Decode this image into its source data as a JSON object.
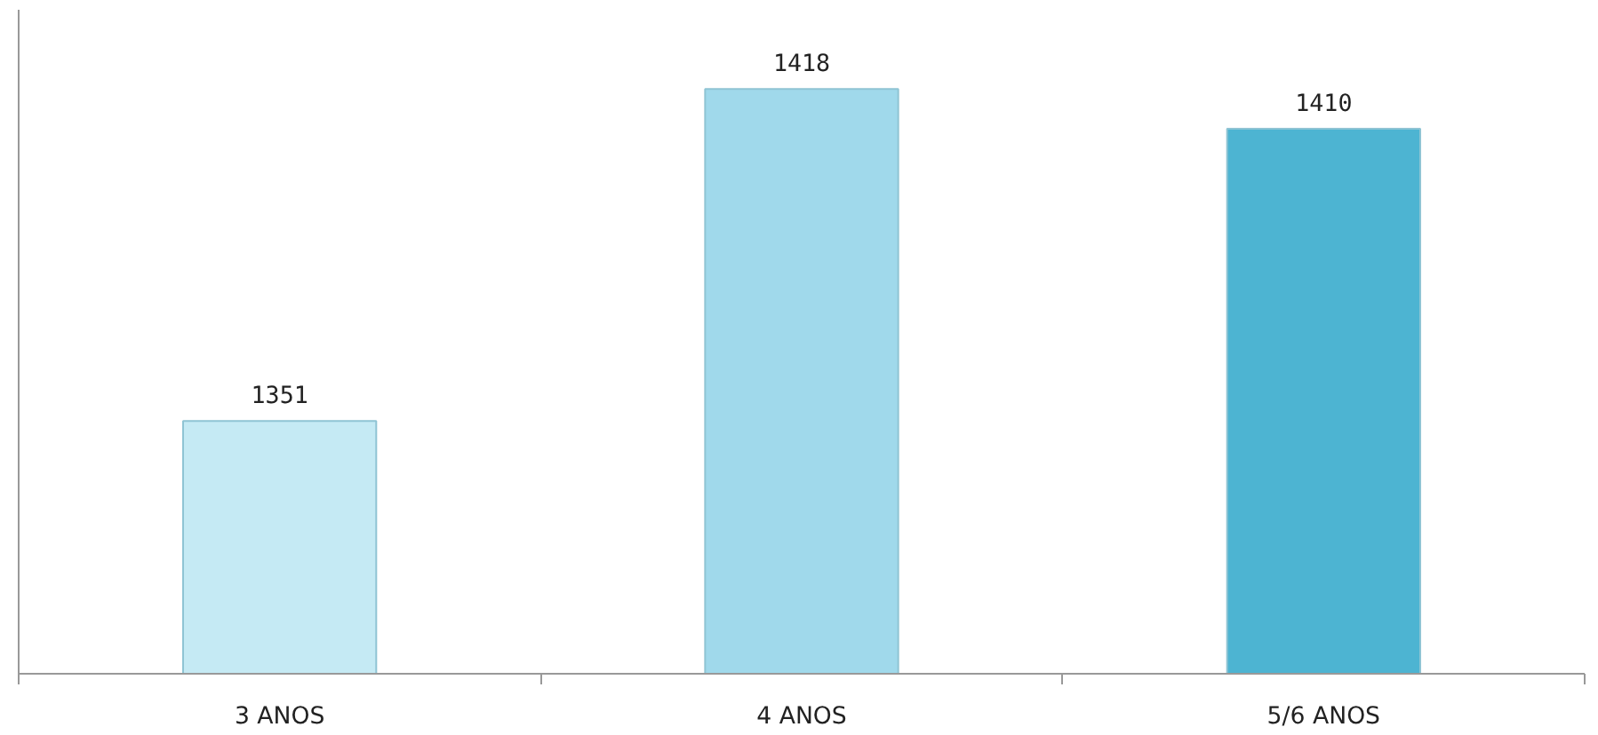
{
  "chart_data": {
    "type": "bar",
    "categories": [
      "3 ANOS",
      "4 ANOS",
      "5/6 ANOS"
    ],
    "values": [
      1351,
      1418,
      1410
    ],
    "colors": [
      "#c5eaf4",
      "#a0d9eb",
      "#4db4d2"
    ],
    "data_labels": true,
    "ylim": [
      1300,
      1434
    ],
    "grid": false,
    "tick_labels": "x"
  }
}
